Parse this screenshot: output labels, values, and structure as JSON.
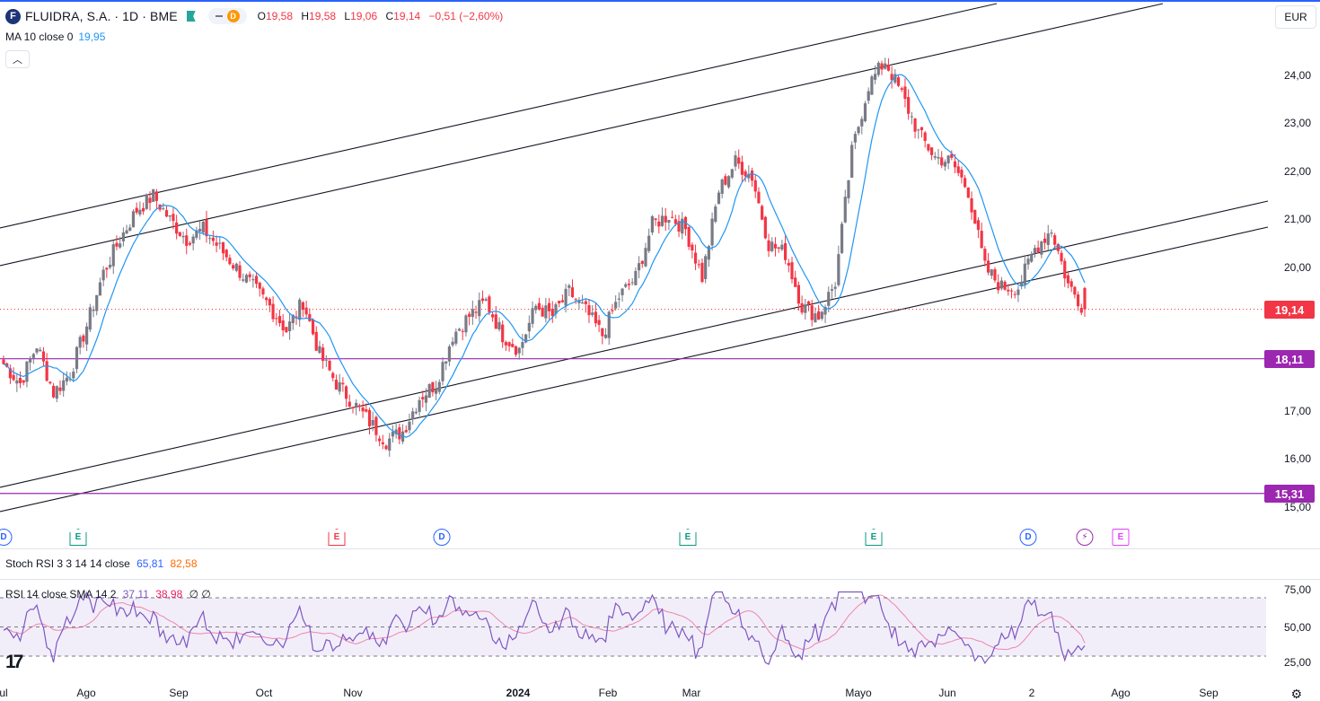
{
  "header": {
    "logo_letter": "F",
    "symbol": "FLUIDRA, S.A. · 1D · BME",
    "pill_letter": "D",
    "ohlc": {
      "o_label": "O",
      "o": "19,58",
      "h_label": "H",
      "h": "19,58",
      "l_label": "L",
      "l": "19,06",
      "c_label": "C",
      "c": "19,14",
      "change": "−0,51 (−2,60%)"
    }
  },
  "ma_indicator": {
    "label": "MA 10 close 0",
    "value": "19,95"
  },
  "currency": "EUR",
  "price_axis": {
    "ticks": [
      "24,00",
      "23,00",
      "22,00",
      "21,00",
      "20,00",
      "17,00",
      "16,00",
      "15,00"
    ],
    "current_tag": "19,14",
    "level_tags": [
      "18,11",
      "15,31"
    ]
  },
  "time_axis": {
    "labels": [
      "ul",
      "Ago",
      "Sep",
      "Oct",
      "Nov",
      "2024",
      "Feb",
      "Mar",
      "Mayo",
      "Jun",
      "2",
      "Ago",
      "Sep"
    ]
  },
  "events": [
    {
      "type": "d",
      "label": "D"
    },
    {
      "type": "e",
      "label": "E",
      "color": "#089981"
    },
    {
      "type": "e",
      "label": "E",
      "color": "#f23645"
    },
    {
      "type": "d",
      "label": "D"
    },
    {
      "type": "e",
      "label": "E",
      "color": "#089981"
    },
    {
      "type": "e",
      "label": "E",
      "color": "#089981"
    },
    {
      "type": "d",
      "label": "D"
    },
    {
      "type": "s",
      "label": "⚡"
    },
    {
      "type": "p",
      "label": "E"
    }
  ],
  "stoch_rsi": {
    "label": "Stoch RSI 3 3 14 14 close",
    "k": "65,81",
    "d": "82,58"
  },
  "rsi": {
    "label": "RSI 14 close SMA 14 2",
    "value": "37,11",
    "sma": "38,98",
    "extra": "∅ ∅",
    "ticks": [
      "75,00",
      "50,00",
      "25,00"
    ]
  },
  "colors": {
    "up": "#787b86",
    "down": "#f23645",
    "ma": "#2196f3",
    "level": "#9c27b0",
    "rsi": "#7e57c2",
    "rsi_sma": "#e91e63",
    "rsi_band": "#7e57c2"
  },
  "chart_data": {
    "type": "candlestick",
    "x_labels": [
      "Ago",
      "Sep",
      "Oct",
      "Nov",
      "2024",
      "Feb",
      "Mar",
      "Mayo",
      "Jun",
      "Jul"
    ],
    "close_path": [
      18.0,
      17.6,
      18.4,
      17.4,
      17.8,
      18.8,
      19.9,
      20.6,
      21.2,
      21.5,
      21.0,
      20.6,
      20.8,
      20.4,
      20.0,
      19.6,
      19.2,
      18.7,
      19.3,
      18.2,
      17.6,
      17.2,
      16.8,
      16.4,
      16.6,
      17.3,
      17.6,
      18.6,
      19.0,
      19.3,
      18.6,
      18.3,
      19.2,
      19.0,
      19.5,
      19.1,
      18.6,
      19.4,
      19.8,
      20.9,
      21.1,
      20.8,
      19.8,
      21.6,
      22.2,
      21.9,
      20.5,
      20.3,
      19.2,
      19.0,
      19.7,
      22.4,
      23.8,
      24.3,
      23.6,
      22.8,
      22.3,
      22.2,
      21.6,
      20.0,
      19.6,
      19.6,
      20.4,
      20.8,
      19.65,
      19.14
    ],
    "ma10_last": 19.95,
    "horizontal_levels": [
      18.11,
      15.31
    ],
    "last_close": 19.14,
    "y_range": [
      14.8,
      25.1
    ],
    "rsi_last": 37.11,
    "rsi_sma_last": 38.98,
    "rsi_band": [
      30,
      70
    ]
  }
}
